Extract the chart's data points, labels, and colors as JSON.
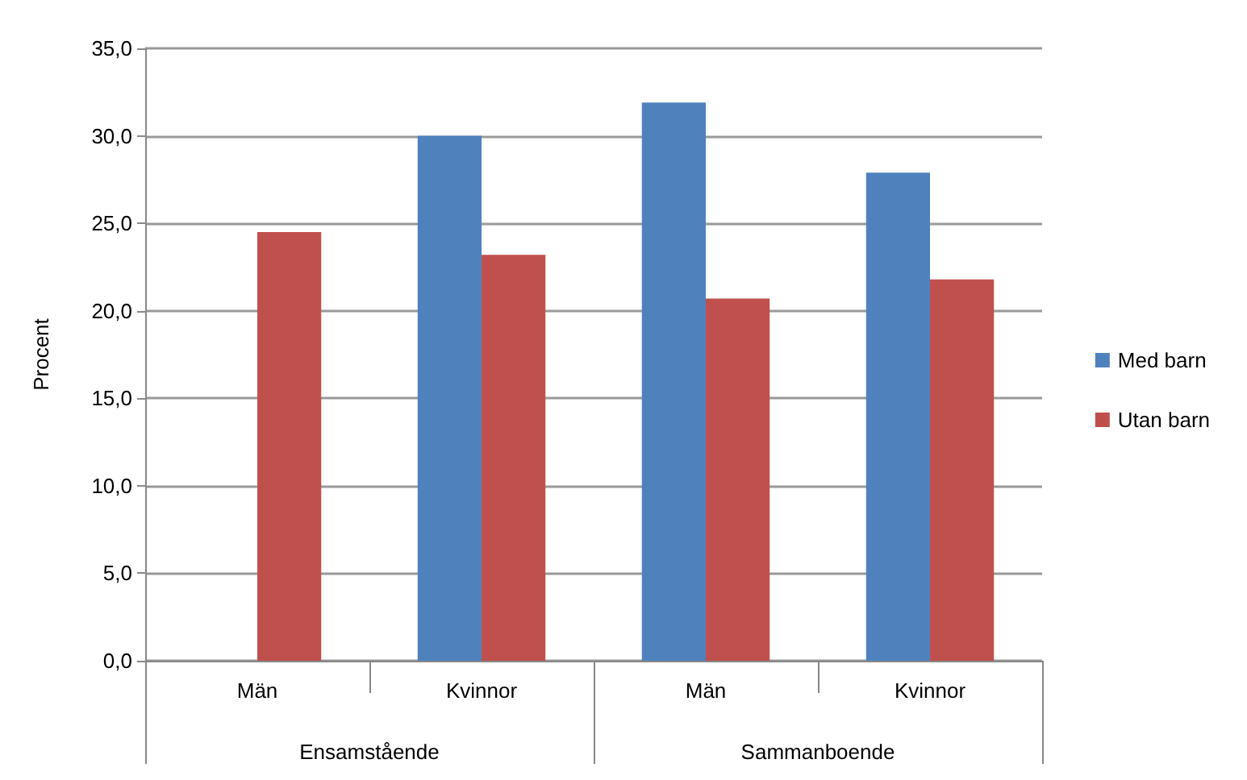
{
  "chart_data": {
    "type": "bar",
    "ylabel": "Procent",
    "categories": [
      "Män",
      "Kvinnor",
      "Män",
      "Kvinnor"
    ],
    "annotations": [
      "Ensamstående",
      "Sammanboende"
    ],
    "series": [
      {
        "name": "Med barn",
        "color": "#4f81bd",
        "values": [
          null,
          30.0,
          31.9,
          27.9
        ]
      },
      {
        "name": "Utan barn",
        "color": "#c0504d",
        "values": [
          24.5,
          23.2,
          20.7,
          21.8
        ]
      }
    ],
    "ylim": [
      0,
      35
    ],
    "yticks": [
      {
        "value": 0,
        "label": "0,0"
      },
      {
        "value": 5,
        "label": "5,0"
      },
      {
        "value": 10,
        "label": "10,0"
      },
      {
        "value": 15,
        "label": "15,0"
      },
      {
        "value": 20,
        "label": "20,0"
      },
      {
        "value": 25,
        "label": "25,0"
      },
      {
        "value": 30,
        "label": "30,0"
      },
      {
        "value": 35,
        "label": "35,0"
      }
    ],
    "grid": "y",
    "legend": "right"
  }
}
